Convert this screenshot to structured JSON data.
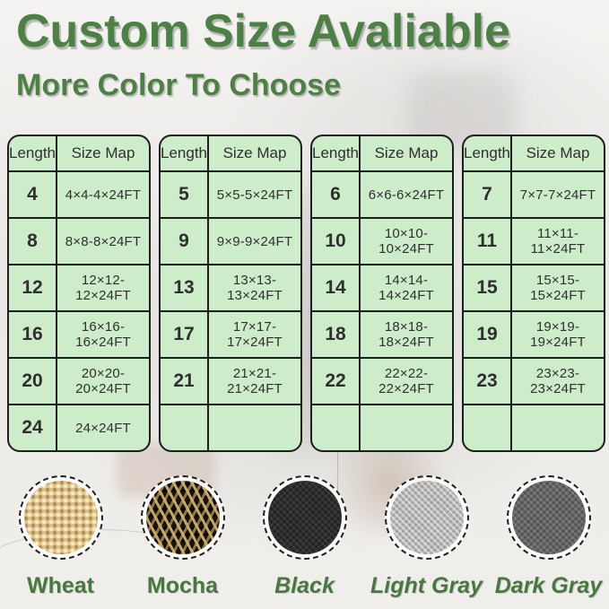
{
  "header": {
    "title": "Custom Size Avaliable",
    "subtitle": "More Color To Choose"
  },
  "tables": [
    {
      "columns": [
        "Length",
        "Size Map"
      ],
      "rows": [
        [
          "4",
          "4×4-4×24FT"
        ],
        [
          "8",
          "8×8-8×24FT"
        ],
        [
          "12",
          "12×12-12×24FT"
        ],
        [
          "16",
          "16×16-16×24FT"
        ],
        [
          "20",
          "20×20-20×24FT"
        ],
        [
          "24",
          "24×24FT"
        ]
      ]
    },
    {
      "columns": [
        "Length",
        "Size Map"
      ],
      "rows": [
        [
          "5",
          "5×5-5×24FT"
        ],
        [
          "9",
          "9×9-9×24FT"
        ],
        [
          "13",
          "13×13-13×24FT"
        ],
        [
          "17",
          "17×17-17×24FT"
        ],
        [
          "21",
          "21×21-21×24FT"
        ],
        [
          "",
          ""
        ]
      ]
    },
    {
      "columns": [
        "Length",
        "Size Map"
      ],
      "rows": [
        [
          "6",
          "6×6-6×24FT"
        ],
        [
          "10",
          "10×10-10×24FT"
        ],
        [
          "14",
          "14×14-14×24FT"
        ],
        [
          "18",
          "18×18-18×24FT"
        ],
        [
          "22",
          "22×22-22×24FT"
        ],
        [
          "",
          ""
        ]
      ]
    },
    {
      "columns": [
        "Length",
        "Size Map"
      ],
      "rows": [
        [
          "7",
          "7×7-7×24FT"
        ],
        [
          "11",
          "11×11-11×24FT"
        ],
        [
          "15",
          "15×15-15×24FT"
        ],
        [
          "19",
          "19×19-19×24FT"
        ],
        [
          "23",
          "23×23-23×24FT"
        ],
        [
          "",
          ""
        ]
      ]
    }
  ],
  "swatches": [
    {
      "name": "Wheat",
      "italic": false,
      "base_color": "#dfc48c"
    },
    {
      "name": "Mocha",
      "italic": false,
      "base_color": "#17130e"
    },
    {
      "name": "Black",
      "italic": true,
      "base_color": "#2d2d2d"
    },
    {
      "name": "Light Gray",
      "italic": true,
      "base_color": "#b7b6b4"
    },
    {
      "name": "Dark Gray",
      "italic": true,
      "base_color": "#656565"
    }
  ],
  "colors": {
    "accent_green": "#4d8045",
    "label_green": "#47793e",
    "table_background": "#cdecca",
    "table_border": "#1d1d1d",
    "cell_text": "#2f2f2f",
    "page_background": "#eeece9"
  }
}
